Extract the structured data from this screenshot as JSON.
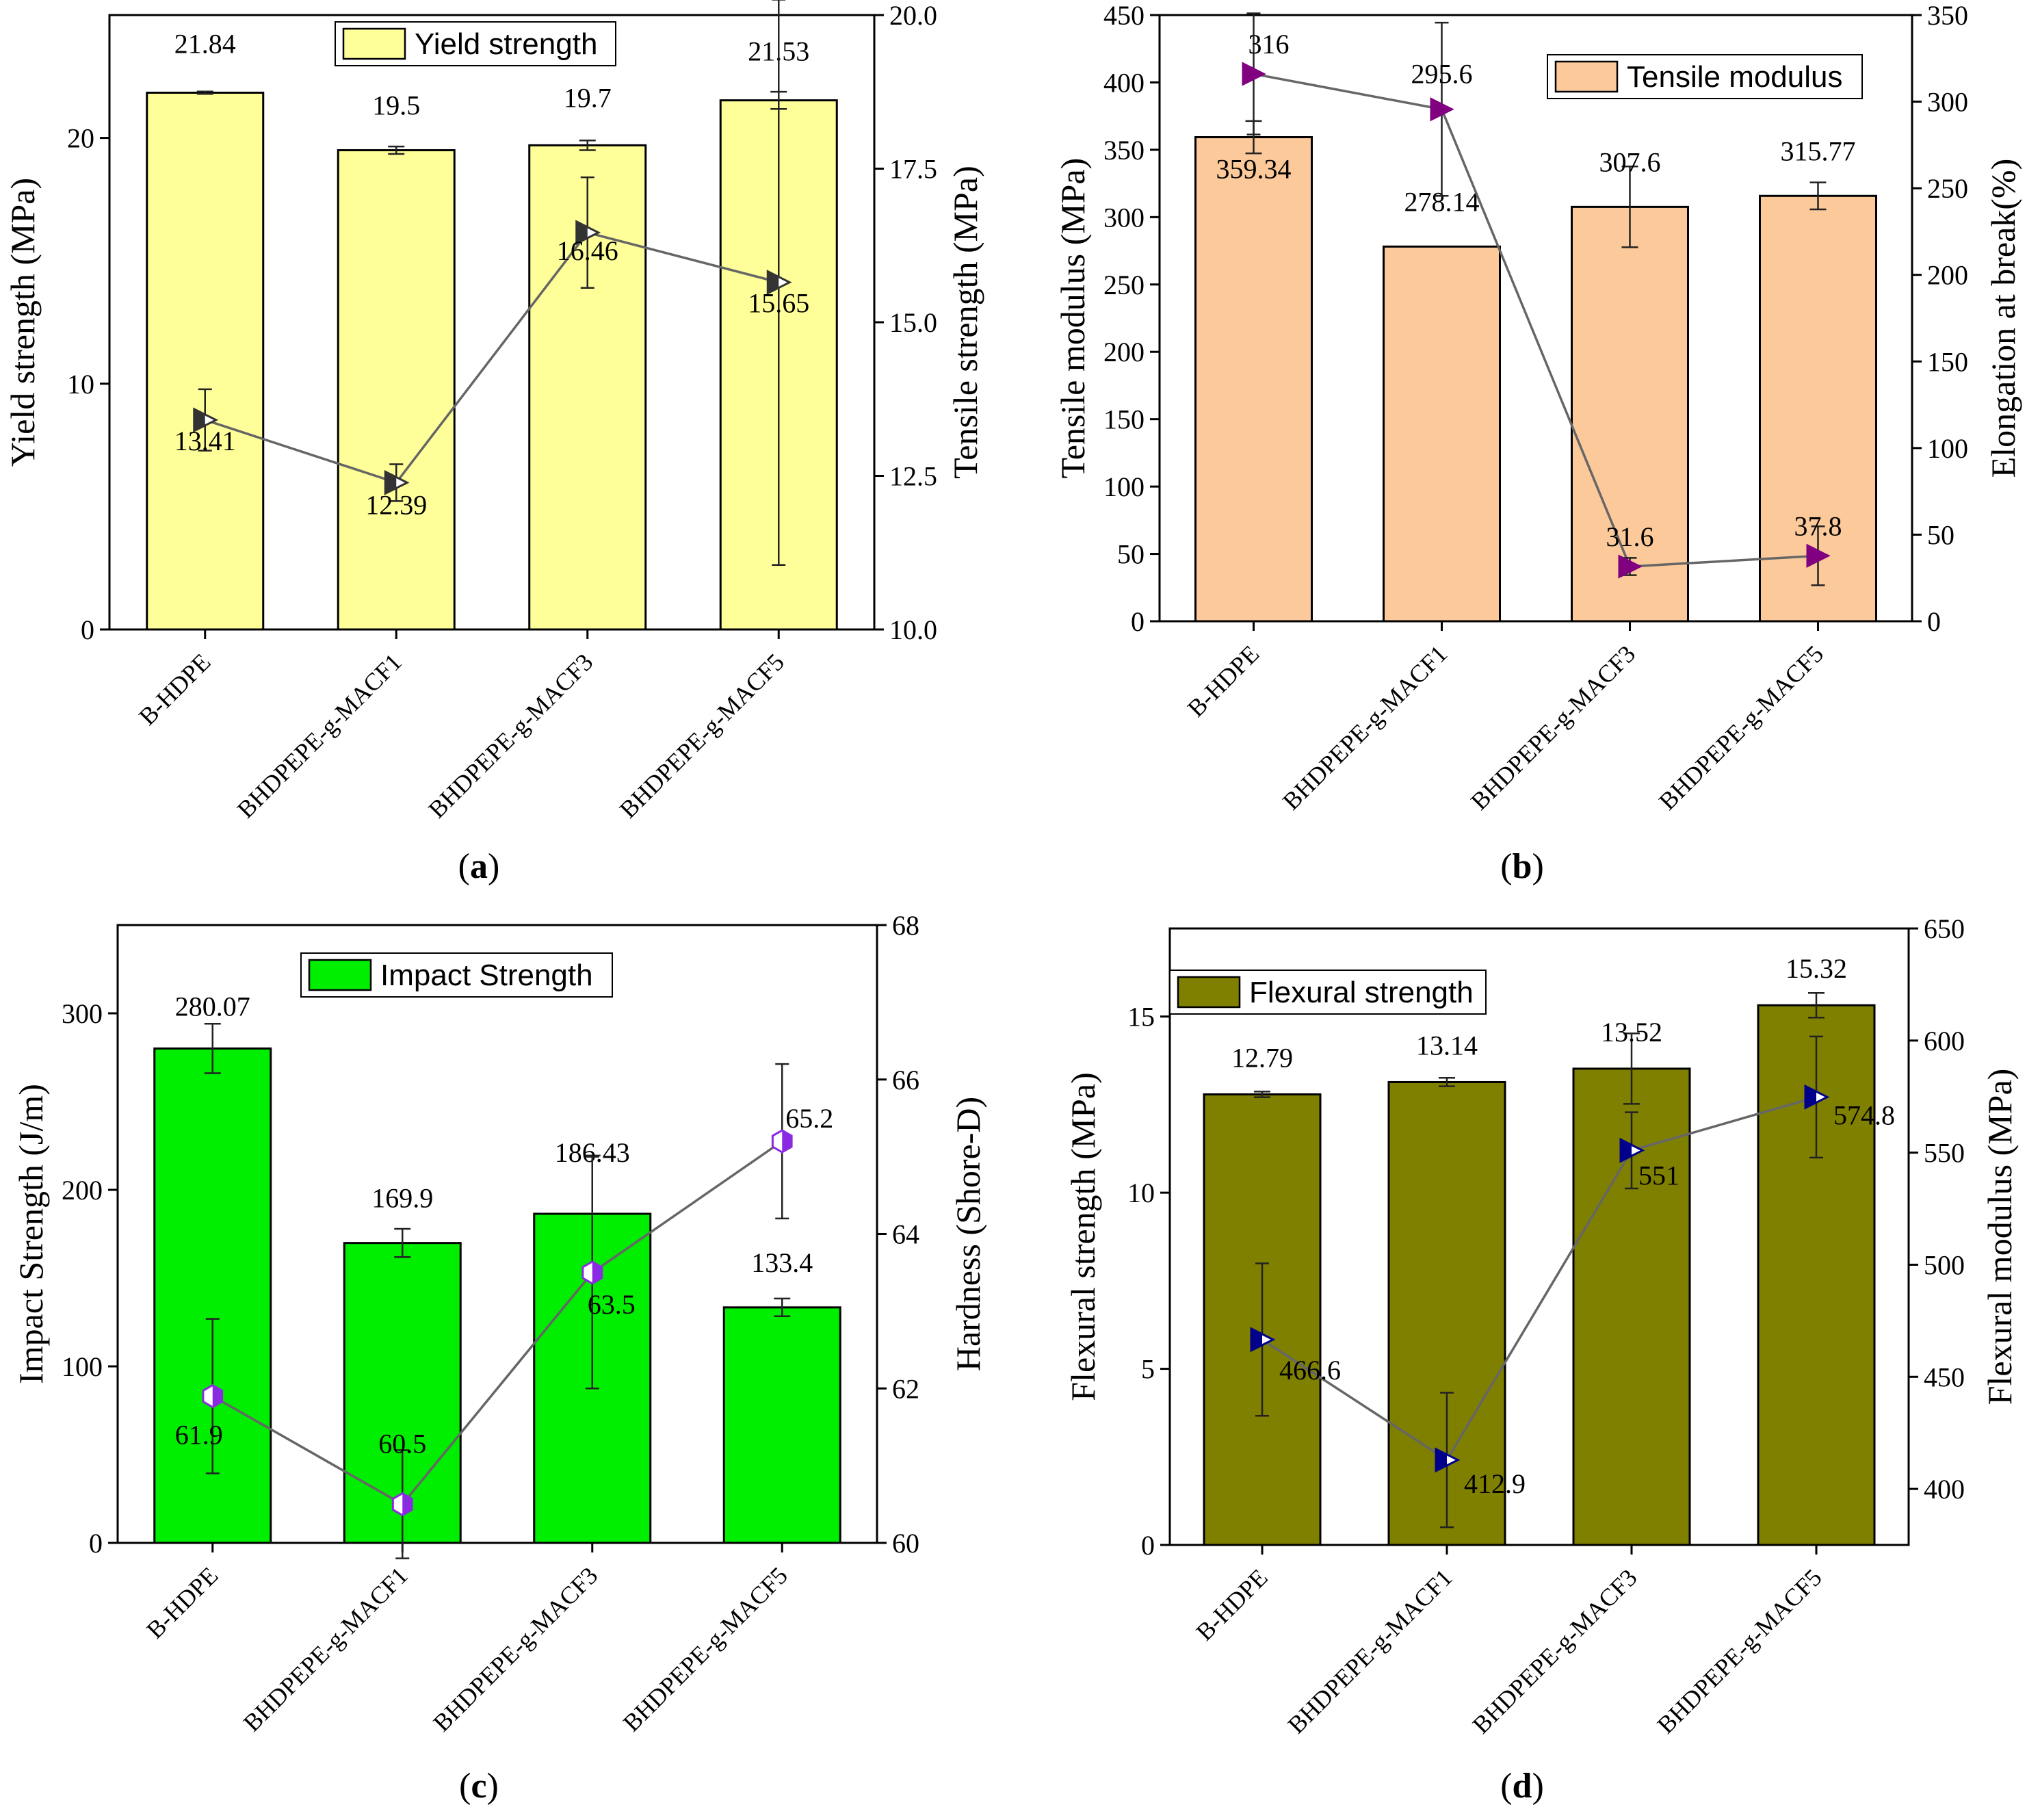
{
  "chart_data": [
    {
      "panel": "(a)",
      "panel_letter": "a",
      "type": "bar",
      "categories": [
        "B-HDPE",
        "BHDPEPE-g-MACF1",
        "BHDPEPE-g-MACF3",
        "BHDPEPE-g-MACF5"
      ],
      "legend": "Yield strength",
      "bar_color": "#ffff99",
      "marker_color": "#333333",
      "marker": "triangle-right-half",
      "y_left": {
        "label": "Yield strength (MPa)",
        "lim": [
          0,
          25
        ],
        "ticks": [
          0,
          10,
          20
        ],
        "tick_labels": [
          "0",
          "10",
          "20"
        ]
      },
      "y_right": {
        "label": "Tensile strength (MPa)",
        "lim": [
          10,
          20
        ],
        "ticks": [
          10,
          12.5,
          15,
          17.5,
          20
        ],
        "tick_labels": [
          "10.0",
          "12.5",
          "15.0",
          "17.5",
          "20.0"
        ]
      },
      "bars": {
        "values": [
          21.84,
          19.5,
          19.7,
          21.53
        ],
        "errors": [
          0.05,
          0.15,
          0.2,
          0.35
        ],
        "labels": [
          "21.84",
          "19.5",
          "19.7",
          "21.53"
        ]
      },
      "line": {
        "values": [
          13.41,
          12.39,
          16.46,
          15.65
        ],
        "errors": [
          0.5,
          0.3,
          0.9,
          4.6
        ],
        "labels": [
          "13.41",
          "12.39",
          "16.46",
          "15.65"
        ]
      }
    },
    {
      "panel": "(b)",
      "panel_letter": "b",
      "type": "bar",
      "categories": [
        "B-HDPE",
        "BHDPEPE-g-MACF1",
        "BHDPEPE-g-MACF3",
        "BHDPEPE-g-MACF5"
      ],
      "legend": "Tensile modulus",
      "bar_color": "#fbc99a",
      "marker_color": "#800080",
      "marker": "triangle-right",
      "y_left": {
        "label": "Tensile modulus (MPa)",
        "lim": [
          0,
          450
        ],
        "ticks": [
          0,
          50,
          100,
          150,
          200,
          250,
          300,
          350,
          400,
          450
        ],
        "tick_labels": [
          "0",
          "50",
          "100",
          "150",
          "200",
          "250",
          "300",
          "350",
          "400",
          "450"
        ]
      },
      "y_right": {
        "label": "Elongation at break(%)",
        "lim": [
          0,
          350
        ],
        "ticks": [
          0,
          50,
          100,
          150,
          200,
          250,
          300,
          350
        ],
        "tick_labels": [
          "0",
          "50",
          "100",
          "150",
          "200",
          "250",
          "300",
          "350"
        ]
      },
      "bars": {
        "values": [
          359.34,
          278.14,
          307.6,
          315.77
        ],
        "errors": [
          12,
          0,
          30,
          10
        ],
        "labels": [
          "359.34",
          "278.14",
          "307.6",
          "315.77"
        ]
      },
      "line": {
        "values": [
          316,
          295.6,
          31.6,
          37.8
        ],
        "errors": [
          35,
          50,
          5,
          17
        ],
        "labels": [
          "316",
          "295.6",
          "31.6",
          "37.8"
        ]
      }
    },
    {
      "panel": "(c)",
      "panel_letter": "c",
      "type": "bar",
      "categories": [
        "B-HDPE",
        "BHDPEPE-g-MACF1",
        "BHDPEPE-g-MACF3",
        "BHDPEPE-g-MACF5"
      ],
      "legend": "Impact Strength",
      "bar_color": "#00ee00",
      "marker_color": "#8a2be2",
      "marker": "hexagon-half",
      "y_left": {
        "label": "Impact Strength (J/m)",
        "lim": [
          0,
          350
        ],
        "ticks": [
          0,
          100,
          200,
          300
        ],
        "tick_labels": [
          "0",
          "100",
          "200",
          "300"
        ]
      },
      "y_right": {
        "label": "Hardness (Shore-D)",
        "lim": [
          60,
          68
        ],
        "ticks": [
          60,
          62,
          64,
          66,
          68
        ],
        "tick_labels": [
          "60",
          "62",
          "64",
          "66",
          "68"
        ]
      },
      "bars": {
        "values": [
          280.07,
          169.9,
          186.43,
          133.4
        ],
        "errors": [
          14,
          8,
          33,
          5
        ],
        "labels": [
          "280.07",
          "169.9",
          "186.43",
          "133.4"
        ]
      },
      "line": {
        "values": [
          61.9,
          60.5,
          63.5,
          65.2
        ],
        "errors": [
          1,
          0.7,
          1.5,
          1
        ],
        "labels": [
          "61.9",
          "60.5",
          "63.5",
          "65.2"
        ]
      }
    },
    {
      "panel": "(d)",
      "panel_letter": "d",
      "type": "bar",
      "categories": [
        "B-HDPE",
        "BHDPEPE-g-MACF1",
        "BHDPEPE-g-MACF3",
        "BHDPEPE-g-MACF5"
      ],
      "legend": "Flexural strength",
      "bar_color": "#808000",
      "marker_color": "#00008b",
      "marker": "triangle-right-half",
      "y_left": {
        "label": "Flexural strength (MPa)",
        "lim": [
          0,
          17.5
        ],
        "ticks": [
          0,
          5,
          10,
          15
        ],
        "tick_labels": [
          "0",
          "5",
          "10",
          "15"
        ]
      },
      "y_right": {
        "label": "Flexural modulus (MPa)",
        "lim": [
          375,
          650
        ],
        "ticks": [
          400,
          450,
          500,
          550,
          600,
          650
        ],
        "tick_labels": [
          "400",
          "450",
          "500",
          "550",
          "600",
          "650"
        ]
      },
      "bars": {
        "values": [
          12.79,
          13.14,
          13.52,
          15.32
        ],
        "errors": [
          0.08,
          0.12,
          1.0,
          0.35
        ],
        "labels": [
          "12.79",
          "13.14",
          "13.52",
          "15.32"
        ]
      },
      "line": {
        "values": [
          466.6,
          412.9,
          551,
          574.8
        ],
        "errors": [
          34,
          30,
          17,
          27
        ],
        "labels": [
          "466.6",
          "412.9",
          "551",
          "574.8"
        ]
      }
    }
  ]
}
